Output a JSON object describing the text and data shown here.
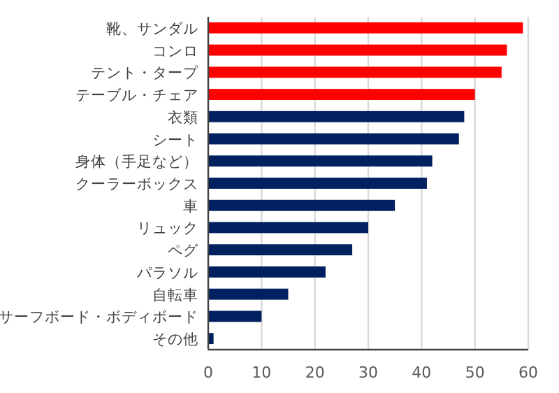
{
  "chart_data": {
    "type": "bar",
    "orientation": "horizontal",
    "categories": [
      "靴、サンダル",
      "コンロ",
      "テント・タープ",
      "テーブル・チェア",
      "衣類",
      "シート",
      "身体（手足など）",
      "クーラーボックス",
      "車",
      "リュック",
      "ペグ",
      "パラソル",
      "自転車",
      "サーフボード・ボディボード",
      "その他"
    ],
    "values": [
      59,
      56,
      55,
      50,
      48,
      47,
      42,
      41,
      35,
      30,
      27,
      22,
      15,
      10,
      1
    ],
    "colors": [
      "#ff0000",
      "#ff0000",
      "#ff0000",
      "#ff0000",
      "#002060",
      "#002060",
      "#002060",
      "#002060",
      "#002060",
      "#002060",
      "#002060",
      "#002060",
      "#002060",
      "#002060",
      "#002060"
    ],
    "xlim": [
      0,
      60
    ],
    "xticks": [
      0,
      10,
      20,
      30,
      40,
      50,
      60
    ],
    "grid": "x"
  }
}
